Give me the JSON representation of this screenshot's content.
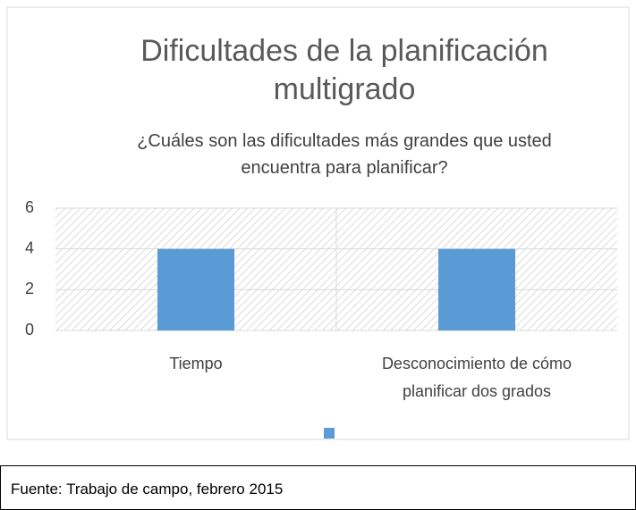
{
  "chart_data": {
    "type": "bar",
    "title": "Dificultades de la planificación\nmultigrado",
    "subtitle": "¿Cuáles son las dificultades más grandes que usted\nencuentra para planificar?",
    "categories": [
      "Tiempo",
      "Desconocimiento de  cómo\nplanificar dos grados"
    ],
    "values": [
      4,
      4
    ],
    "color": "#5b9bd5",
    "ylim": [
      0,
      6
    ],
    "yticks": [
      0,
      2,
      4,
      6
    ],
    "grid": true,
    "legend": "bottom",
    "source": "Fuente: Trabajo de campo, febrero 2015"
  }
}
